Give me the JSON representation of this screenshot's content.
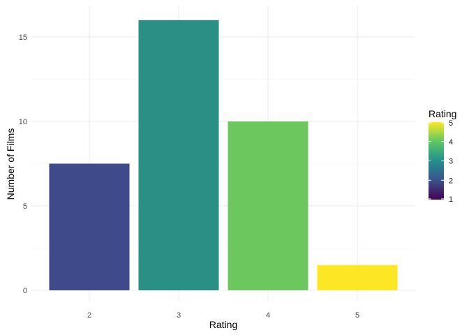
{
  "chart_data": {
    "type": "bar",
    "categories": [
      "2",
      "3",
      "4",
      "5"
    ],
    "values": [
      7.5,
      16,
      10,
      1.5
    ],
    "xlabel": "Rating",
    "ylabel": "Number of Films",
    "ylim": [
      0,
      16.5
    ],
    "y_ticks": [
      "0",
      "5",
      "10",
      "15"
    ],
    "grid": true,
    "legend": {
      "title": "Rating",
      "placement": "right",
      "type": "colorbar",
      "ticks": [
        "1",
        "2",
        "3",
        "4",
        "5"
      ],
      "range": [
        1,
        5
      ]
    },
    "colors": {
      "2": "#3E4A89",
      "3": "#2A9086",
      "4": "#6CC85E",
      "5": "#FDE725"
    }
  }
}
